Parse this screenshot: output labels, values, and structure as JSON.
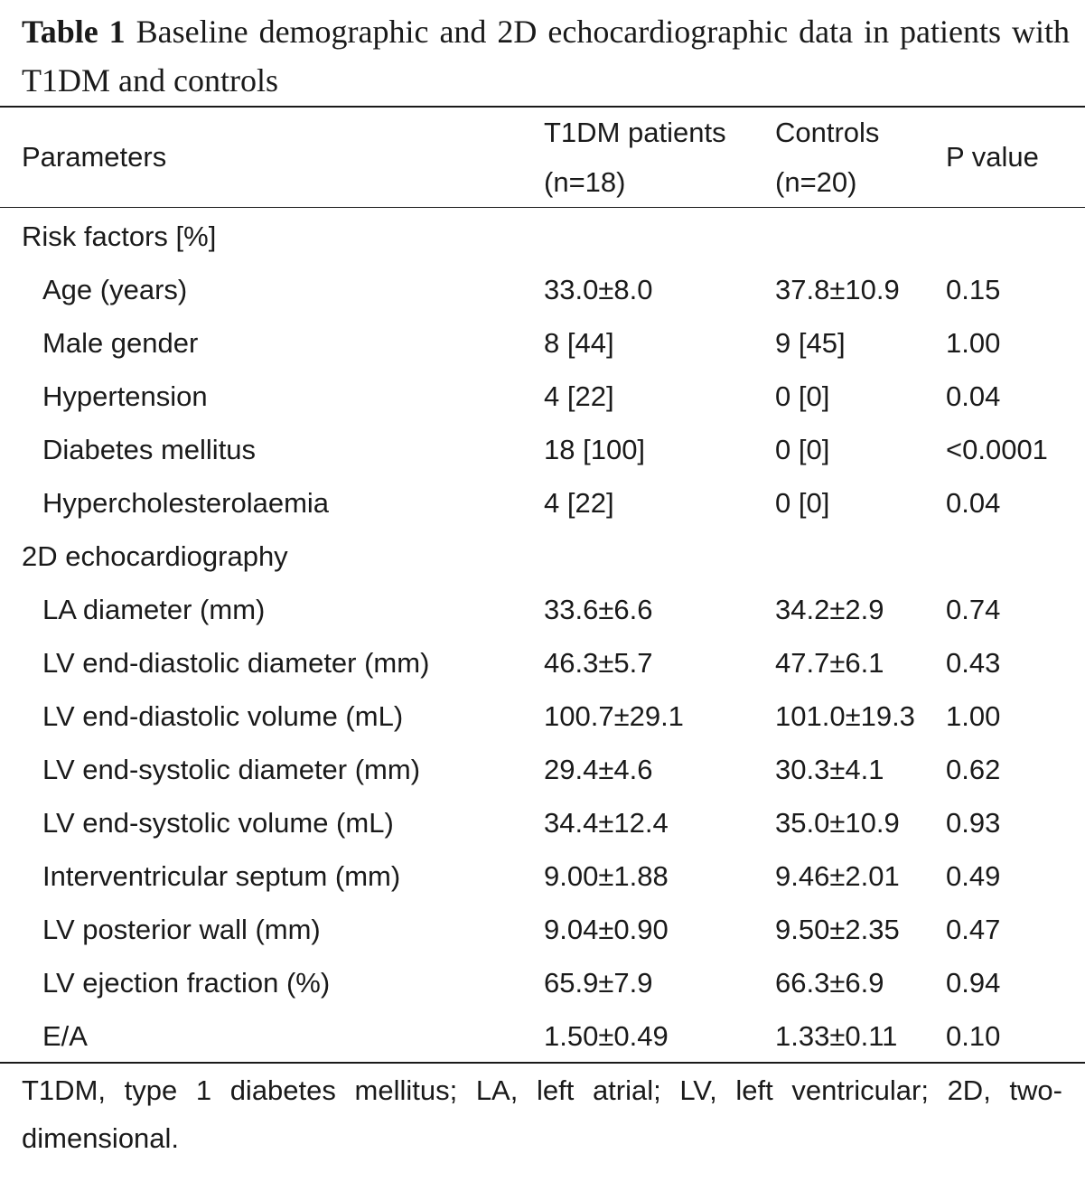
{
  "caption": {
    "label": "Table 1",
    "text": "Baseline demographic and 2D echocardiographic data in patients with T1DM and controls"
  },
  "header": {
    "parameters": "Parameters",
    "t1dm_line1": "T1DM patients",
    "t1dm_line2": "(n=18)",
    "controls_line1": "Controls",
    "controls_line2": "(n=20)",
    "p_value": "P value"
  },
  "rows": [
    {
      "label": "Risk factors [%]",
      "section": true,
      "t1dm": "",
      "controls": "",
      "p": ""
    },
    {
      "label": "Age (years)",
      "section": false,
      "t1dm": "33.0±8.0",
      "controls": "37.8±10.9",
      "p": "0.15"
    },
    {
      "label": "Male gender",
      "section": false,
      "t1dm": "8 [44]",
      "controls": "9 [45]",
      "p": "1.00"
    },
    {
      "label": "Hypertension",
      "section": false,
      "t1dm": "4 [22]",
      "controls": "0 [0]",
      "p": "0.04"
    },
    {
      "label": "Diabetes mellitus",
      "section": false,
      "t1dm": "18 [100]",
      "controls": "0 [0]",
      "p": "<0.0001"
    },
    {
      "label": "Hypercholesterolaemia",
      "section": false,
      "t1dm": "4 [22]",
      "controls": "0 [0]",
      "p": "0.04"
    },
    {
      "label": "2D echocardiography",
      "section": true,
      "t1dm": "",
      "controls": "",
      "p": ""
    },
    {
      "label": "LA diameter (mm)",
      "section": false,
      "t1dm": "33.6±6.6",
      "controls": "34.2±2.9",
      "p": "0.74"
    },
    {
      "label": "LV end-diastolic diameter (mm)",
      "section": false,
      "t1dm": "46.3±5.7",
      "controls": "47.7±6.1",
      "p": "0.43"
    },
    {
      "label": "LV end-diastolic volume (mL)",
      "section": false,
      "t1dm": "100.7±29.1",
      "controls": "101.0±19.3",
      "p": "1.00"
    },
    {
      "label": "LV end-systolic diameter (mm)",
      "section": false,
      "t1dm": "29.4±4.6",
      "controls": "30.3±4.1",
      "p": "0.62"
    },
    {
      "label": "LV end-systolic volume (mL)",
      "section": false,
      "t1dm": "34.4±12.4",
      "controls": "35.0±10.9",
      "p": "0.93"
    },
    {
      "label": "Interventricular septum (mm)",
      "section": false,
      "t1dm": "9.00±1.88",
      "controls": "9.46±2.01",
      "p": "0.49"
    },
    {
      "label": "LV posterior wall (mm)",
      "section": false,
      "t1dm": "9.04±0.90",
      "controls": "9.50±2.35",
      "p": "0.47"
    },
    {
      "label": "LV ejection fraction (%)",
      "section": false,
      "t1dm": "65.9±7.9",
      "controls": "66.3±6.9",
      "p": "0.94"
    },
    {
      "label": "E/A",
      "section": false,
      "t1dm": "1.50±0.49",
      "controls": "1.33±0.11",
      "p": "0.10"
    }
  ],
  "footnote": "T1DM, type 1 diabetes mellitus; LA, left atrial; LV, left ventricular; 2D, two-dimensional."
}
